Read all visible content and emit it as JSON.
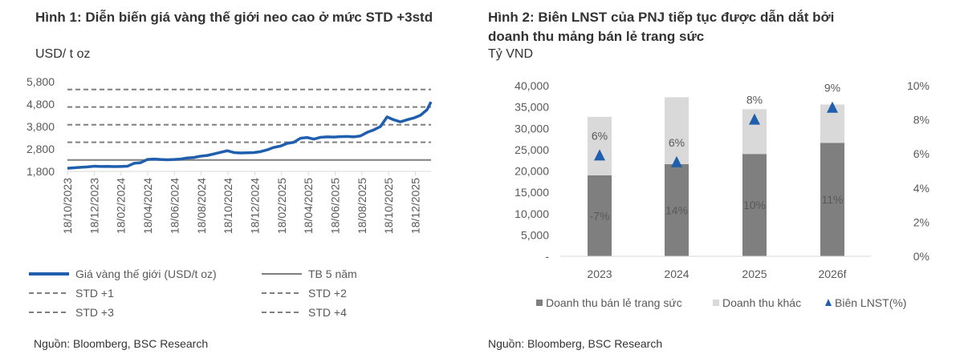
{
  "chart_data": [
    {
      "type": "line",
      "title": "Hình 1: Diễn biến giá vàng thế giới neo cao ở mức STD +3std",
      "ylabel": "USD/ t oz",
      "ylim": [
        1800,
        5800
      ],
      "yticks": [
        "5,800",
        "4,800",
        "3,800",
        "2,800",
        "1,800"
      ],
      "ytick_values": [
        5800,
        4800,
        3800,
        2800,
        1800
      ],
      "xtick_labels": [
        "18/10/2023",
        "18/12/2023",
        "18/02/2024",
        "18/04/2024",
        "18/06/2024",
        "18/08/2024",
        "18/10/2024",
        "18/12/2024",
        "18/02/2025",
        "18/04/2025",
        "18/06/2025",
        "18/08/2025",
        "18/10/2025",
        "18/12/2025"
      ],
      "x_months_from_start_end": 27.3,
      "series": [
        {
          "name": "Giá vàng thế giới (USD/t oz)",
          "color": "#1f5fad",
          "style": "solid-thick",
          "x_months": [
            0,
            0.5,
            1,
            1.5,
            2,
            2.5,
            3,
            3.5,
            4,
            4.5,
            5,
            5.5,
            6,
            6.5,
            7,
            7.5,
            8,
            8.5,
            9,
            9.5,
            10,
            10.5,
            11,
            11.5,
            12,
            12.5,
            13,
            13.5,
            14,
            14.5,
            15,
            15.5,
            16,
            16.5,
            17,
            17.5,
            18,
            18.5,
            19,
            19.5,
            20,
            20.5,
            21,
            21.5,
            22,
            22.5,
            23,
            23.5,
            24,
            24.5,
            25,
            25.5,
            26,
            26.5,
            27,
            27.3
          ],
          "values": [
            1940,
            1960,
            1985,
            2000,
            2030,
            2020,
            2025,
            2015,
            2020,
            2030,
            2160,
            2190,
            2330,
            2350,
            2330,
            2320,
            2330,
            2350,
            2400,
            2420,
            2480,
            2510,
            2580,
            2650,
            2720,
            2640,
            2620,
            2630,
            2640,
            2680,
            2760,
            2870,
            2930,
            3050,
            3100,
            3280,
            3310,
            3240,
            3320,
            3340,
            3330,
            3350,
            3360,
            3340,
            3380,
            3540,
            3650,
            3800,
            4230,
            4100,
            4010,
            4100,
            4180,
            4300,
            4550,
            4900
          ]
        },
        {
          "name": "TB 5 năm",
          "color": "#7f7f7f",
          "style": "solid",
          "value": 2310
        },
        {
          "name": "STD +1",
          "color": "#7f7f7f",
          "style": "dashed",
          "value": 3100
        },
        {
          "name": "STD +2",
          "color": "#7f7f7f",
          "style": "dashed",
          "value": 3880
        },
        {
          "name": "STD +3",
          "color": "#7f7f7f",
          "style": "dashed",
          "value": 4670
        },
        {
          "name": "STD +4",
          "color": "#7f7f7f",
          "style": "dashed",
          "value": 5450
        }
      ],
      "source": "Nguồn: Bloomberg, BSC Research"
    },
    {
      "type": "bar",
      "title": "Hình 2: Biên LNST của PNJ tiếp tục được dẫn dắt bởi doanh thu mảng bán lẻ trang sức",
      "ylabel": "Tỷ VND",
      "categories": [
        "2023",
        "2024",
        "2025",
        "2026f"
      ],
      "ylim": [
        0,
        40000
      ],
      "yticks": [
        "40,000",
        "35,000",
        "30,000",
        "25,000",
        "20,000",
        "15,000",
        "10,000",
        "5,000",
        "-"
      ],
      "ytick_values": [
        40000,
        35000,
        30000,
        25000,
        20000,
        15000,
        10000,
        5000,
        0
      ],
      "y2lim": [
        0,
        10
      ],
      "y2ticks": [
        "10%",
        "8%",
        "6%",
        "4%",
        "2%",
        "0%"
      ],
      "y2tick_values": [
        10,
        8,
        6,
        4,
        2,
        0
      ],
      "series": [
        {
          "name": "Doanh thu bán lẻ trang sức",
          "color": "#7f7f7f",
          "values": [
            19000,
            21600,
            24000,
            26600
          ],
          "labels": [
            "-7%",
            "14%",
            "10%",
            "11%"
          ]
        },
        {
          "name": "Doanh thu khác",
          "color": "#d9d9d9",
          "values": [
            13700,
            15700,
            10500,
            9000
          ]
        },
        {
          "name": "Biên LNST(%)",
          "color": "#1f5fad",
          "marker": "triangle",
          "values": [
            5.9,
            5.5,
            8.0,
            8.7
          ],
          "labels": [
            "6%",
            "6%",
            "8%",
            "9%"
          ]
        }
      ],
      "source": "Nguồn: Bloomberg, BSC Research"
    }
  ]
}
